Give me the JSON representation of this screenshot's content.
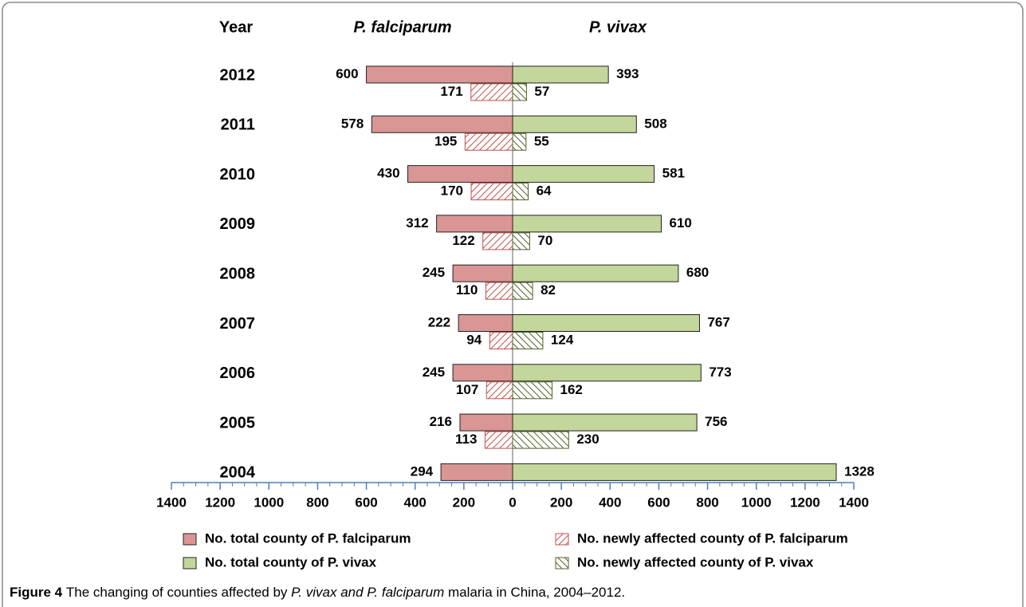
{
  "chart_data": {
    "type": "butterfly",
    "headers": {
      "year": "Year",
      "left": "P. falciparum",
      "right": "P. vivax"
    },
    "categories": [
      "2012",
      "2011",
      "2010",
      "2009",
      "2008",
      "2007",
      "2006",
      "2005",
      "2004"
    ],
    "series": [
      {
        "name": "No. total county of P. falciparum",
        "color": "#d99694",
        "side": "left",
        "hatch": false,
        "values": [
          600,
          578,
          430,
          312,
          245,
          222,
          245,
          216,
          294
        ]
      },
      {
        "name": "No. newly affected county of P. falciparum",
        "color": "#c0504d",
        "side": "left",
        "hatch": true,
        "values": [
          171,
          195,
          170,
          122,
          110,
          94,
          107,
          113,
          null
        ]
      },
      {
        "name": "No. total county of P. vivax",
        "color": "#c3d69b",
        "side": "right",
        "hatch": false,
        "values": [
          393,
          508,
          581,
          610,
          680,
          767,
          773,
          756,
          1328
        ]
      },
      {
        "name": "No. newly affected county of P. vivax",
        "color": "#4f6228",
        "side": "right",
        "hatch": true,
        "values": [
          57,
          55,
          64,
          70,
          82,
          124,
          162,
          230,
          null
        ]
      }
    ],
    "xlim": [
      -1400,
      1400
    ],
    "xticks": [
      {
        "value": -1400,
        "label": "1400"
      },
      {
        "value": -1200,
        "label": "1200"
      },
      {
        "value": -1000,
        "label": "1000"
      },
      {
        "value": -800,
        "label": "800"
      },
      {
        "value": -600,
        "label": "600"
      },
      {
        "value": -400,
        "label": "400"
      },
      {
        "value": -200,
        "label": "200"
      },
      0,
      200,
      400,
      600,
      800,
      1000,
      1200,
      1400
    ]
  },
  "caption": {
    "label": "Figure 4",
    "parts": [
      "The changing of counties affected by ",
      "P. vivax and P. falciparum",
      " malaria in China, 2004–2012."
    ]
  }
}
